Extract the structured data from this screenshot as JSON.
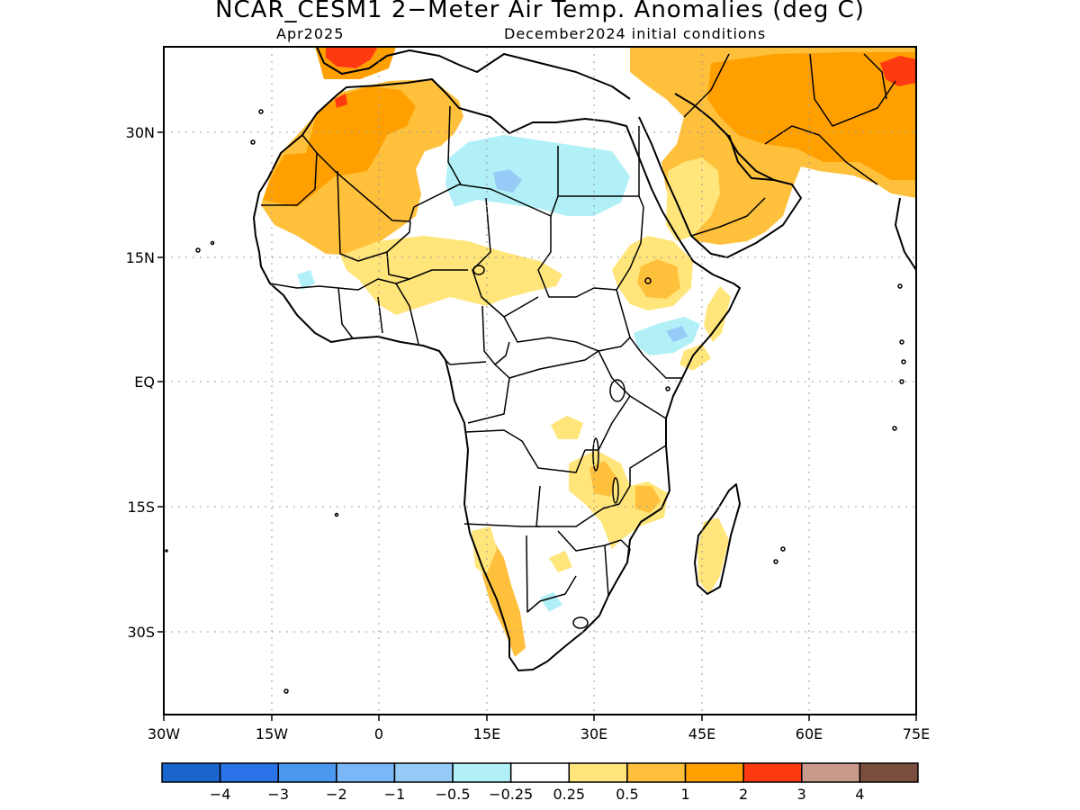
{
  "title": "NCAR_CESM1 2−Meter Air Temp. Anomalies (deg C)",
  "subtitle_left": "Apr2025",
  "subtitle_right": "December2024 initial conditions",
  "lat_ticks": [
    "30N",
    "15N",
    "EQ",
    "15S",
    "30S"
  ],
  "lon_ticks": [
    "30W",
    "15W",
    "0",
    "15E",
    "30E",
    "45E",
    "60E",
    "75E"
  ],
  "colorbar": {
    "colors": [
      "#1965cd",
      "#2a72e8",
      "#4a98f0",
      "#7bb6f6",
      "#97cbf7",
      "#b2f0f8",
      "#ffffff",
      "#ffe57a",
      "#ffc03c",
      "#ffa000",
      "#ff3a10",
      "#c89a8c",
      "#7a4e3e"
    ],
    "labels": [
      "−4",
      "−3",
      "−2",
      "−1",
      "−0.5",
      "−0.25",
      "0.25",
      "0.5",
      "1",
      "2",
      "3",
      "4"
    ]
  },
  "colors": {
    "cold_light": "#b2f0f8",
    "cold_mid": "#97cbf7",
    "warm_light": "#ffe57a",
    "warm_mid": "#ffc03c",
    "warm_strong": "#ffa000",
    "hot": "#ff3a10"
  }
}
